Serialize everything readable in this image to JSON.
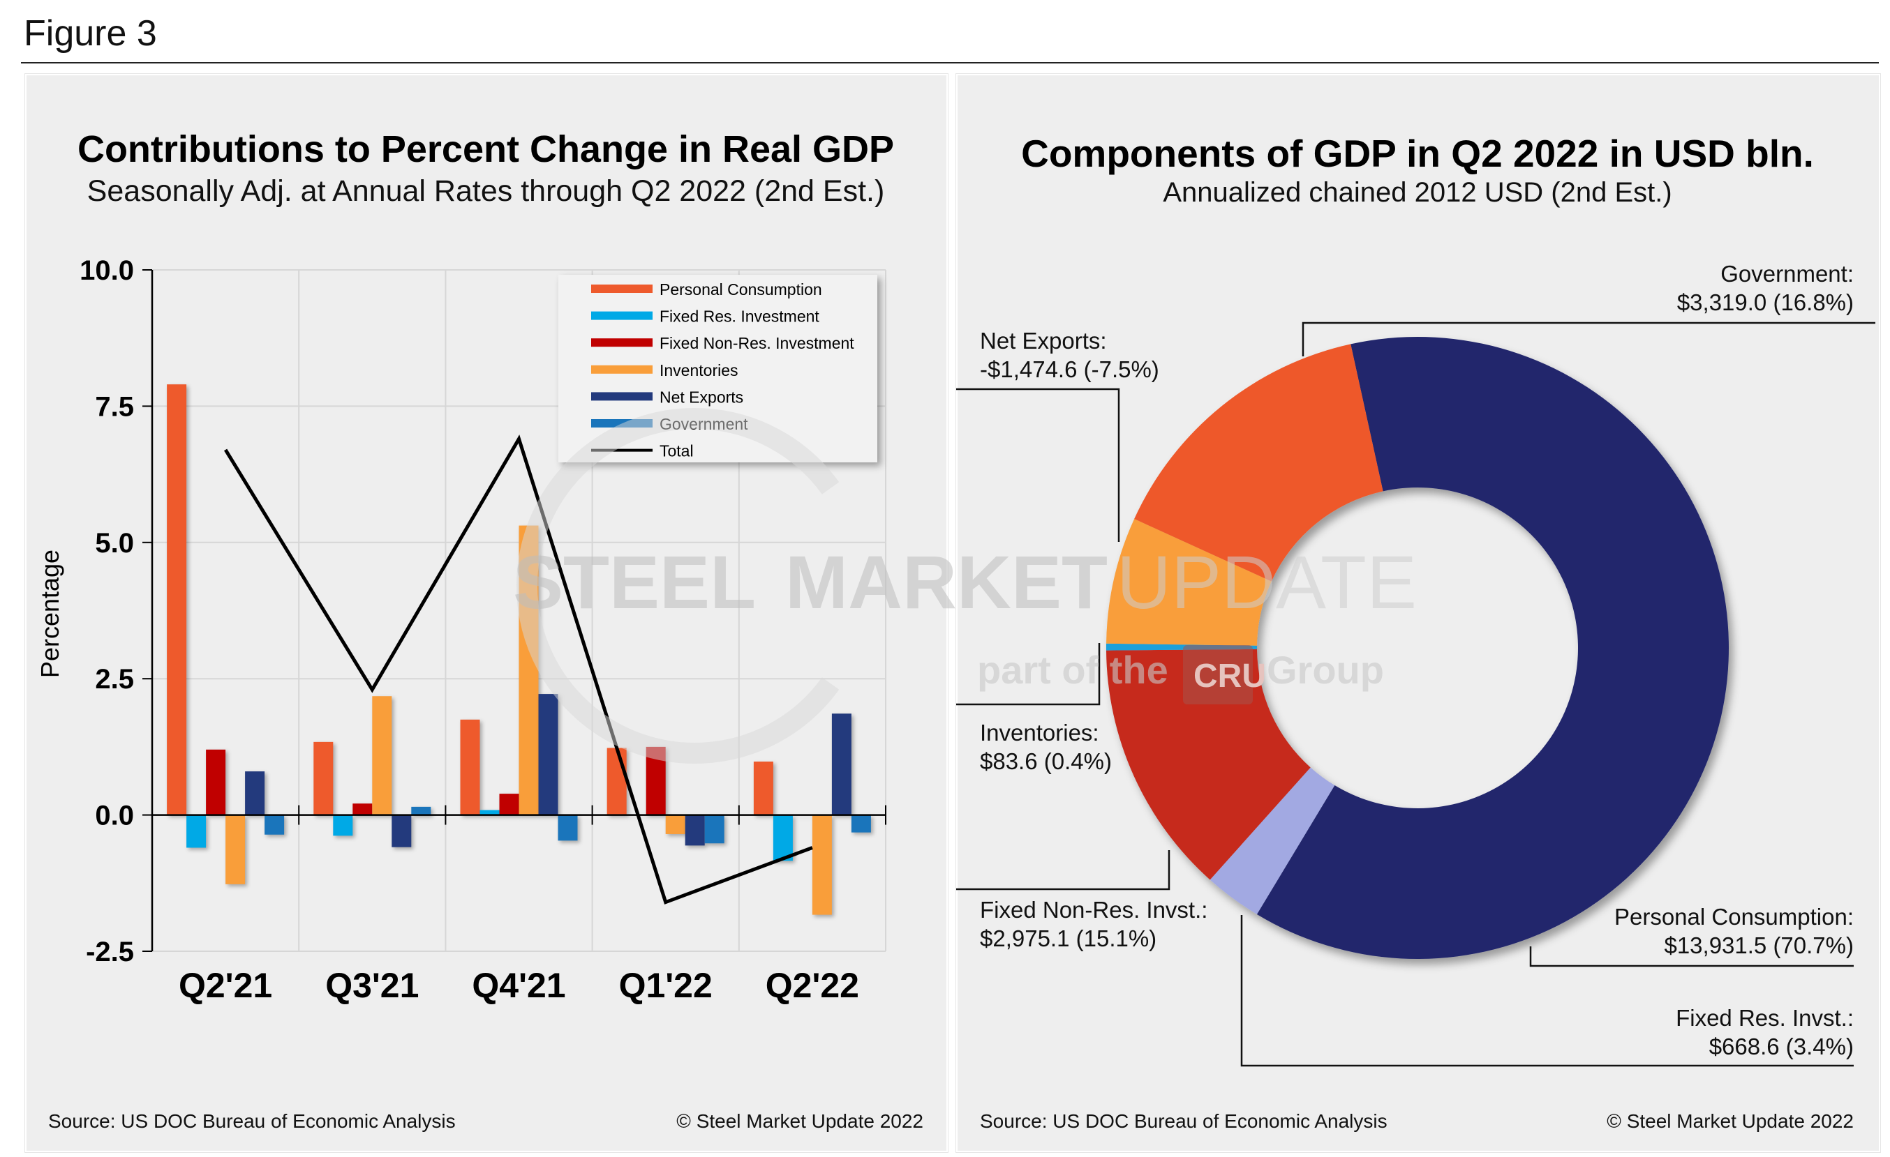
{
  "figure_label": "Figure 3",
  "watermark": {
    "line1a": "STEEL",
    "line1b": "MARKET",
    "line1c": "UPDATE",
    "line2a": "part of the",
    "line2b": "CRU",
    "line2c": "Group"
  },
  "chart_data": [
    {
      "type": "bar",
      "title": "Contributions to Percent Change in Real GDP",
      "subtitle": "Seasonally Adj. at Annual Rates through Q2 2022 (2nd Est.)",
      "xlabel": "",
      "ylabel": "Percentage",
      "ylim": [
        -2.5,
        10.0
      ],
      "yticks": [
        "10.0",
        "7.5",
        "5.0",
        "2.5",
        "0.0",
        "-2.5"
      ],
      "ytick_values": [
        10,
        7.5,
        5,
        2.5,
        0,
        -2.5
      ],
      "grid": true,
      "legend_position": "top-right",
      "categories": [
        "Q2'21",
        "Q3'21",
        "Q4'21",
        "Q1'22",
        "Q2'22"
      ],
      "series": [
        {
          "name": "Personal Consumption",
          "color": "#EE5A2C",
          "values": [
            7.9,
            1.34,
            1.75,
            1.23,
            0.98
          ]
        },
        {
          "name": "Fixed Res. Investment",
          "color": "#00A9E6",
          "values": [
            -0.6,
            -0.38,
            0.09,
            0.01,
            -0.84
          ]
        },
        {
          "name": "Fixed Non-Res. Investment",
          "color": "#C00000",
          "values": [
            1.2,
            0.21,
            0.39,
            1.25,
            0.0
          ]
        },
        {
          "name": "Inventories",
          "color": "#F99E3A",
          "values": [
            -1.27,
            2.18,
            5.31,
            -0.35,
            -1.83
          ]
        },
        {
          "name": "Net Exports",
          "color": "#233A7D",
          "values": [
            0.8,
            -0.59,
            2.22,
            -0.56,
            1.86
          ]
        },
        {
          "name": "Government",
          "color": "#1A75BB",
          "values": [
            -0.36,
            0.15,
            -0.47,
            -0.52,
            -0.32
          ]
        }
      ],
      "line_series": {
        "name": "Total",
        "color": "#000000",
        "values": [
          6.7,
          2.3,
          6.9,
          -1.6,
          -0.6
        ]
      },
      "source": "Source: US DOC Bureau of Economic Analysis",
      "copyright": "© Steel Market Update 2022"
    },
    {
      "type": "pie",
      "donut": true,
      "title": "Components of GDP in Q2 2022 in USD bln.",
      "subtitle": "Annualized chained 2012 USD (2nd Est.)",
      "slices": [
        {
          "name": "Personal Consumption:",
          "value_label": "$13,931.5 (70.7%)",
          "value": 13931.5,
          "percent": 70.7,
          "color": "#22286C"
        },
        {
          "name": "Fixed Res. Invst.:",
          "value_label": "$668.6 (3.4%)",
          "value": 668.6,
          "percent": 3.4,
          "color": "#A2A9E2"
        },
        {
          "name": "Fixed Non-Res. Invst.:",
          "value_label": "$2,975.1 (15.1%)",
          "value": 2975.1,
          "percent": 15.1,
          "color": "#C62A1F"
        },
        {
          "name": "Inventories:",
          "value_label": "$83.6 (0.4%)",
          "value": 83.6,
          "percent": 0.4,
          "color": "#1FA0DA"
        },
        {
          "name": "Net Exports:",
          "value_label": "-$1,474.6 (-7.5%)",
          "value": -1474.6,
          "percent": -7.5,
          "color": "#F99E3A"
        },
        {
          "name": "Government:",
          "value_label": "$3,319.0 (16.8%)",
          "value": 3319.0,
          "percent": 16.8,
          "color": "#EE582A"
        }
      ],
      "source": "Source: US DOC Bureau of Economic Analysis",
      "copyright": "© Steel Market Update 2022"
    }
  ]
}
